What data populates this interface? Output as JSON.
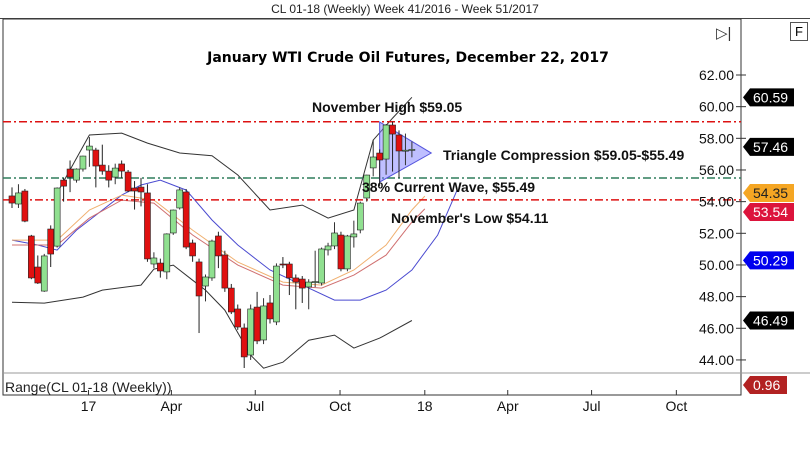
{
  "window": {
    "title": "CL 01-18 (Weekly)  Week 41/2016 - Week 51/2017"
  },
  "controls": {
    "f_button": "F",
    "end_icon": "skip-to-end-icon",
    "end_glyph": "▷|"
  },
  "lower_panel": {
    "label": "Range(CL 01-18 (Weekly))",
    "tag": "0.96",
    "tag_color": "#b22222"
  },
  "chart_data": {
    "type": "candlestick",
    "title": "January WTI Crude Oil Futures, December 22, 2017",
    "ylim": [
      43,
      64
    ],
    "y_ticks": [
      "62.00",
      "60.00",
      "58.00",
      "56.00",
      "54.00",
      "52.00",
      "50.00",
      "48.00",
      "46.00",
      "44.00"
    ],
    "x_ticks": [
      {
        "label": "17",
        "date": "2017-01-01"
      },
      {
        "label": "Apr",
        "date": "2017-04-01"
      },
      {
        "label": "Jul",
        "date": "2017-07-01"
      },
      {
        "label": "Oct",
        "date": "2017-10-01"
      },
      {
        "label": "18",
        "date": "2018-01-01"
      },
      {
        "label": "Apr",
        "date": "2018-04-01"
      },
      {
        "label": "Jul",
        "date": "2018-07-01"
      },
      {
        "label": "Oct",
        "date": "2018-10-01"
      }
    ],
    "colors": {
      "up": "#90e090",
      "down": "#e01010",
      "upper_band": "#333333",
      "lower_band": "#333333",
      "ma_blue": "#4a4ad0",
      "ma_orange": "#f0b070",
      "ma_red": "#d07070",
      "triangle": "#8080ff"
    },
    "candles": [
      {
        "date": "2016-10-10",
        "o": 54.36,
        "h": 54.9,
        "l": 53.6,
        "c": 53.91
      },
      {
        "date": "2016-10-17",
        "o": 53.85,
        "h": 55.1,
        "l": 53.6,
        "c": 54.55
      },
      {
        "date": "2016-10-24",
        "o": 54.67,
        "h": 54.8,
        "l": 52.7,
        "c": 52.77
      },
      {
        "date": "2016-10-31",
        "o": 51.83,
        "h": 51.9,
        "l": 49.1,
        "c": 49.18
      },
      {
        "date": "2016-11-07",
        "o": 49.87,
        "h": 50.6,
        "l": 48.8,
        "c": 48.86
      },
      {
        "date": "2016-11-14",
        "o": 48.35,
        "h": 50.7,
        "l": 48.3,
        "c": 50.57
      },
      {
        "date": "2016-11-21",
        "o": 52.27,
        "h": 52.5,
        "l": 49.87,
        "c": 50.69
      },
      {
        "date": "2016-11-28",
        "o": 51.19,
        "h": 54.9,
        "l": 51.1,
        "c": 54.86
      },
      {
        "date": "2016-12-05",
        "o": 55.36,
        "h": 55.5,
        "l": 54.0,
        "c": 54.98
      },
      {
        "date": "2016-12-12",
        "o": 56.06,
        "h": 56.6,
        "l": 54.6,
        "c": 55.55
      },
      {
        "date": "2016-12-19",
        "o": 55.36,
        "h": 56.1,
        "l": 55.2,
        "c": 56.06
      },
      {
        "date": "2016-12-26",
        "o": 56.06,
        "h": 56.9,
        "l": 55.9,
        "c": 56.88
      },
      {
        "date": "2017-01-02",
        "o": 57.26,
        "h": 58.08,
        "l": 56.2,
        "c": 57.51
      },
      {
        "date": "2017-01-09",
        "o": 57.26,
        "h": 57.4,
        "l": 54.9,
        "c": 56.25
      },
      {
        "date": "2017-01-16",
        "o": 56.31,
        "h": 57.6,
        "l": 55.7,
        "c": 55.93
      },
      {
        "date": "2017-01-23",
        "o": 55.93,
        "h": 56.3,
        "l": 54.9,
        "c": 55.36
      },
      {
        "date": "2017-01-30",
        "o": 55.55,
        "h": 56.4,
        "l": 55.1,
        "c": 56.12
      },
      {
        "date": "2017-02-06",
        "o": 56.38,
        "h": 56.6,
        "l": 55.5,
        "c": 55.93
      },
      {
        "date": "2017-02-13",
        "o": 55.87,
        "h": 56.0,
        "l": 54.6,
        "c": 54.67
      },
      {
        "date": "2017-02-20",
        "o": 54.86,
        "h": 55.3,
        "l": 53.5,
        "c": 54.67
      },
      {
        "date": "2017-02-27",
        "o": 54.92,
        "h": 55.5,
        "l": 53.7,
        "c": 54.61
      },
      {
        "date": "2017-03-06",
        "o": 54.55,
        "h": 55.1,
        "l": 50.2,
        "c": 50.38
      },
      {
        "date": "2017-03-13",
        "o": 50.06,
        "h": 50.8,
        "l": 49.8,
        "c": 50.44
      },
      {
        "date": "2017-03-20",
        "o": 50.12,
        "h": 50.4,
        "l": 49.2,
        "c": 49.62
      },
      {
        "date": "2017-03-27",
        "o": 49.56,
        "h": 52.0,
        "l": 49.1,
        "c": 51.96
      },
      {
        "date": "2017-04-03",
        "o": 52.02,
        "h": 53.5,
        "l": 51.9,
        "c": 53.47
      },
      {
        "date": "2017-04-10",
        "o": 53.6,
        "h": 54.9,
        "l": 53.5,
        "c": 54.74
      },
      {
        "date": "2017-04-17",
        "o": 54.61,
        "h": 54.8,
        "l": 51.0,
        "c": 51.13
      },
      {
        "date": "2017-04-24",
        "o": 51.39,
        "h": 51.6,
        "l": 50.2,
        "c": 50.57
      },
      {
        "date": "2017-05-01",
        "o": 50.19,
        "h": 50.4,
        "l": 45.7,
        "c": 48.04
      },
      {
        "date": "2017-05-08",
        "o": 48.67,
        "h": 49.4,
        "l": 47.7,
        "c": 49.24
      },
      {
        "date": "2017-05-15",
        "o": 49.18,
        "h": 51.6,
        "l": 49.0,
        "c": 51.51
      },
      {
        "date": "2017-05-22",
        "o": 51.83,
        "h": 52.1,
        "l": 49.8,
        "c": 50.57
      },
      {
        "date": "2017-05-29",
        "o": 50.63,
        "h": 50.9,
        "l": 48.3,
        "c": 48.54
      },
      {
        "date": "2017-06-05",
        "o": 48.54,
        "h": 48.8,
        "l": 46.9,
        "c": 47.03
      },
      {
        "date": "2017-06-12",
        "o": 47.22,
        "h": 47.5,
        "l": 45.9,
        "c": 46.08
      },
      {
        "date": "2017-06-19",
        "o": 46.02,
        "h": 46.3,
        "l": 43.49,
        "c": 44.19
      },
      {
        "date": "2017-06-26",
        "o": 44.31,
        "h": 47.5,
        "l": 44.0,
        "c": 47.22
      },
      {
        "date": "2017-07-03",
        "o": 47.34,
        "h": 48.3,
        "l": 45.0,
        "c": 45.2
      },
      {
        "date": "2017-07-10",
        "o": 45.26,
        "h": 47.9,
        "l": 45.0,
        "c": 47.41
      },
      {
        "date": "2017-07-17",
        "o": 47.6,
        "h": 48.1,
        "l": 46.3,
        "c": 46.59
      },
      {
        "date": "2017-07-24",
        "o": 46.4,
        "h": 50.1,
        "l": 46.2,
        "c": 49.93
      },
      {
        "date": "2017-07-31",
        "o": 50.06,
        "h": 50.5,
        "l": 49.8,
        "c": 50.0
      },
      {
        "date": "2017-08-07",
        "o": 50.06,
        "h": 50.2,
        "l": 48.1,
        "c": 49.18
      },
      {
        "date": "2017-08-14",
        "o": 49.18,
        "h": 49.4,
        "l": 47.2,
        "c": 48.92
      },
      {
        "date": "2017-08-21",
        "o": 49.11,
        "h": 49.3,
        "l": 47.6,
        "c": 48.54
      },
      {
        "date": "2017-08-28",
        "o": 48.61,
        "h": 49.1,
        "l": 47.2,
        "c": 48.92
      },
      {
        "date": "2017-09-04",
        "o": 48.92,
        "h": 50.9,
        "l": 48.6,
        "c": 48.95
      },
      {
        "date": "2017-09-11",
        "o": 48.86,
        "h": 51.1,
        "l": 48.7,
        "c": 51.01
      },
      {
        "date": "2017-09-18",
        "o": 50.95,
        "h": 51.4,
        "l": 50.6,
        "c": 51.2
      },
      {
        "date": "2017-09-25",
        "o": 51.2,
        "h": 52.7,
        "l": 51.0,
        "c": 52.02
      },
      {
        "date": "2017-10-02",
        "o": 51.89,
        "h": 52.1,
        "l": 49.6,
        "c": 49.75
      },
      {
        "date": "2017-10-09",
        "o": 49.75,
        "h": 51.9,
        "l": 49.6,
        "c": 51.83
      },
      {
        "date": "2017-10-16",
        "o": 51.77,
        "h": 52.8,
        "l": 51.1,
        "c": 51.96
      },
      {
        "date": "2017-10-23",
        "o": 52.21,
        "h": 54.0,
        "l": 52.0,
        "c": 53.91
      },
      {
        "date": "2017-10-30",
        "o": 54.23,
        "h": 55.7,
        "l": 54.0,
        "c": 55.68
      },
      {
        "date": "2017-11-06",
        "o": 56.13,
        "h": 57.9,
        "l": 55.6,
        "c": 56.82
      },
      {
        "date": "2017-11-13",
        "o": 57.07,
        "h": 57.3,
        "l": 55.0,
        "c": 56.63
      },
      {
        "date": "2017-11-20",
        "o": 56.69,
        "h": 58.9,
        "l": 55.7,
        "c": 58.84
      },
      {
        "date": "2017-11-27",
        "o": 58.84,
        "h": 59.05,
        "l": 55.9,
        "c": 58.27
      },
      {
        "date": "2017-12-04",
        "o": 58.21,
        "h": 58.5,
        "l": 55.5,
        "c": 57.2
      },
      {
        "date": "2017-12-11",
        "o": 57.2,
        "h": 58.3,
        "l": 56.3,
        "c": 57.25
      },
      {
        "date": "2017-12-18",
        "o": 57.26,
        "h": 57.8,
        "l": 56.8,
        "c": 57.3
      }
    ],
    "upper_band": [
      {
        "date": "2016-11-28",
        "v": 54.54
      },
      {
        "date": "2017-01-02",
        "v": 58.21
      },
      {
        "date": "2017-02-06",
        "v": 58.33
      },
      {
        "date": "2017-03-06",
        "v": 57.7
      },
      {
        "date": "2017-04-10",
        "v": 57.07
      },
      {
        "date": "2017-05-15",
        "v": 56.9
      },
      {
        "date": "2017-06-12",
        "v": 55.68
      },
      {
        "date": "2017-07-17",
        "v": 53.47
      },
      {
        "date": "2017-08-21",
        "v": 53.78
      },
      {
        "date": "2017-09-18",
        "v": 52.96
      },
      {
        "date": "2017-10-16",
        "v": 53.47
      },
      {
        "date": "2017-11-06",
        "v": 57.89
      },
      {
        "date": "2017-11-27",
        "v": 59.28
      },
      {
        "date": "2017-12-18",
        "v": 60.59
      }
    ],
    "lower_band": [
      {
        "date": "2016-10-10",
        "v": 47.65
      },
      {
        "date": "2016-11-14",
        "v": 47.59
      },
      {
        "date": "2016-12-26",
        "v": 47.97
      },
      {
        "date": "2017-01-16",
        "v": 48.41
      },
      {
        "date": "2017-02-27",
        "v": 48.73
      },
      {
        "date": "2017-03-13",
        "v": 49.74
      },
      {
        "date": "2017-04-03",
        "v": 49.99
      },
      {
        "date": "2017-04-24",
        "v": 49.04
      },
      {
        "date": "2017-05-08",
        "v": 48.41
      },
      {
        "date": "2017-05-29",
        "v": 47.15
      },
      {
        "date": "2017-06-26",
        "v": 44.3
      },
      {
        "date": "2017-07-10",
        "v": 43.48
      },
      {
        "date": "2017-07-31",
        "v": 43.86
      },
      {
        "date": "2017-08-28",
        "v": 45.25
      },
      {
        "date": "2017-09-25",
        "v": 45.57
      },
      {
        "date": "2017-10-16",
        "v": 44.75
      },
      {
        "date": "2017-11-13",
        "v": 45.38
      },
      {
        "date": "2017-12-18",
        "v": 46.49
      }
    ],
    "ma_blue": [
      {
        "date": "2016-10-10",
        "v": 51.57
      },
      {
        "date": "2016-11-07",
        "v": 51.26
      },
      {
        "date": "2016-11-28",
        "v": 50.94
      },
      {
        "date": "2016-12-19",
        "v": 52.2
      },
      {
        "date": "2017-01-09",
        "v": 53.15
      },
      {
        "date": "2017-02-06",
        "v": 54.41
      },
      {
        "date": "2017-02-27",
        "v": 55.05
      },
      {
        "date": "2017-03-20",
        "v": 55.36
      },
      {
        "date": "2017-04-17",
        "v": 54.73
      },
      {
        "date": "2017-05-15",
        "v": 52.84
      },
      {
        "date": "2017-06-12",
        "v": 51.26
      },
      {
        "date": "2017-07-17",
        "v": 49.68
      },
      {
        "date": "2017-08-21",
        "v": 48.73
      },
      {
        "date": "2017-09-25",
        "v": 47.78
      },
      {
        "date": "2017-10-23",
        "v": 47.78
      },
      {
        "date": "2017-11-20",
        "v": 48.41
      },
      {
        "date": "2017-12-18",
        "v": 49.68
      },
      {
        "date": "2018-01-15",
        "v": 51.89
      },
      {
        "date": "2018-02-05",
        "v": 54.73
      }
    ],
    "ma_orange": [
      {
        "date": "2016-10-10",
        "v": 51.57
      },
      {
        "date": "2016-11-28",
        "v": 51.57
      },
      {
        "date": "2017-01-02",
        "v": 53.47
      },
      {
        "date": "2017-02-06",
        "v": 54.41
      },
      {
        "date": "2017-03-13",
        "v": 54.1
      },
      {
        "date": "2017-04-24",
        "v": 52.2
      },
      {
        "date": "2017-06-12",
        "v": 50.18
      },
      {
        "date": "2017-07-31",
        "v": 48.92
      },
      {
        "date": "2017-09-11",
        "v": 48.73
      },
      {
        "date": "2017-10-16",
        "v": 49.68
      },
      {
        "date": "2017-11-20",
        "v": 51.26
      },
      {
        "date": "2017-12-18",
        "v": 53.47
      },
      {
        "date": "2018-01-01",
        "v": 54.35
      }
    ],
    "ma_red": [
      {
        "date": "2016-10-10",
        "v": 51.26
      },
      {
        "date": "2016-11-28",
        "v": 51.26
      },
      {
        "date": "2017-01-02",
        "v": 52.96
      },
      {
        "date": "2017-02-06",
        "v": 54.1
      },
      {
        "date": "2017-03-13",
        "v": 53.91
      },
      {
        "date": "2017-04-24",
        "v": 51.89
      },
      {
        "date": "2017-06-12",
        "v": 49.99
      },
      {
        "date": "2017-07-31",
        "v": 48.73
      },
      {
        "date": "2017-09-11",
        "v": 48.54
      },
      {
        "date": "2017-10-16",
        "v": 49.36
      },
      {
        "date": "2017-11-20",
        "v": 50.62
      },
      {
        "date": "2017-12-18",
        "v": 52.71
      },
      {
        "date": "2018-01-01",
        "v": 53.54
      }
    ],
    "triangle": [
      {
        "date": "2017-11-13",
        "v": 59.03
      },
      {
        "date": "2017-11-13",
        "v": 55.24
      },
      {
        "date": "2018-01-08",
        "v": 57.07
      }
    ],
    "hlines": [
      {
        "value": 59.05,
        "color": "#dd1111",
        "label": "November High $59.05"
      },
      {
        "value": 55.49,
        "color": "#2e7d5b",
        "label": "38% Current Wave, $55.49"
      },
      {
        "value": 54.11,
        "color": "#dd1111",
        "label": "November's Low $54.11"
      }
    ],
    "annotations": {
      "triangle": "Triangle Compression $59.05-$55.49"
    },
    "price_tags": [
      {
        "value": "60.59",
        "price": 60.59,
        "bg": "#000000",
        "fg": "#ffffff"
      },
      {
        "value": "57.46",
        "price": 57.46,
        "bg": "#000000",
        "fg": "#ffffff"
      },
      {
        "value": "53.54",
        "price": 53.54,
        "bg": "#dc143c",
        "fg": "#ffffff"
      },
      {
        "value": "54.35",
        "price": 54.35,
        "bg": "#f5a623",
        "fg": "#222222"
      },
      {
        "value": "50.29",
        "price": 50.29,
        "bg": "#0000ee",
        "fg": "#ffffff"
      },
      {
        "value": "46.49",
        "price": 46.49,
        "bg": "#000000",
        "fg": "#ffffff"
      }
    ]
  }
}
